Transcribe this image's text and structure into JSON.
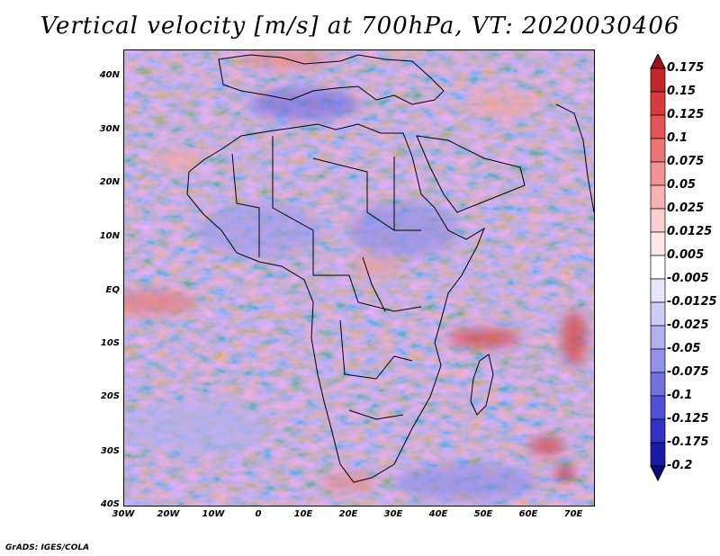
{
  "title": "Vertical velocity [m/s] at 700hPa, VT: 2020030406",
  "y_axis_labels": [
    "40N",
    "30N",
    "20N",
    "10N",
    "EQ",
    "10S",
    "20S",
    "30S",
    "40S"
  ],
  "x_axis_labels": [
    "30W",
    "20W",
    "10W",
    "0",
    "10E",
    "20E",
    "30E",
    "40E",
    "50E",
    "60E",
    "70E"
  ],
  "colorbar": {
    "labels": [
      "0.175",
      "0.15",
      "0.125",
      "0.1",
      "0.075",
      "0.05",
      "0.025",
      "0.0125",
      "0.005",
      "-0.005",
      "-0.0125",
      "-0.025",
      "-0.05",
      "-0.075",
      "-0.1",
      "-0.125",
      "-0.175",
      "-0.2"
    ],
    "colors": [
      "#a50f15",
      "#c0282b",
      "#d93b3b",
      "#e45656",
      "#ec7474",
      "#f29494",
      "#f6b2b2",
      "#fad0d0",
      "#fde8e8",
      "#ffffff",
      "#e6e6fb",
      "#ccccf6",
      "#b0b0ef",
      "#9292e8",
      "#7272df",
      "#5050d4",
      "#3232c6",
      "#1a1aa6",
      "#0a0a80"
    ]
  },
  "footer": "GrADS: IGES/COLA"
}
